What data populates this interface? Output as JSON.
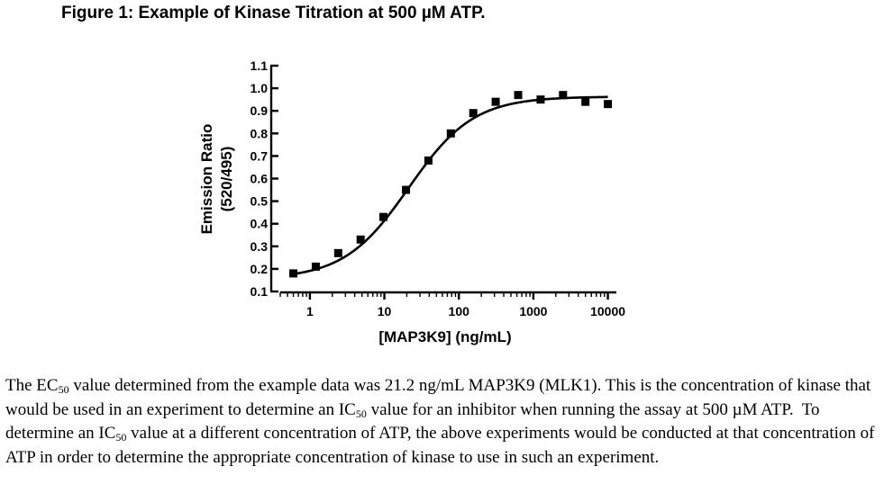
{
  "figure": {
    "title": "Figure 1: Example of Kinase Titration at 500 µM ATP."
  },
  "chart_data": {
    "type": "scatter",
    "xscale": "log",
    "xlim": [
      0.4,
      13000
    ],
    "ylim": [
      0.1,
      1.1
    ],
    "xlabel": "[MAP3K9] (ng/mL)",
    "ylabel": "Emission Ratio",
    "ylabel2": "(520/495)",
    "x_ticks": [
      {
        "value": 1,
        "label": "1"
      },
      {
        "value": 10,
        "label": "10"
      },
      {
        "value": 100,
        "label": "100"
      },
      {
        "value": 1000,
        "label": "1000"
      },
      {
        "value": 10000,
        "label": "10000"
      }
    ],
    "y_ticks": [
      {
        "value": 0.1,
        "label": "0.1"
      },
      {
        "value": 0.2,
        "label": "0.2"
      },
      {
        "value": 0.3,
        "label": "0.3"
      },
      {
        "value": 0.4,
        "label": "0.4"
      },
      {
        "value": 0.5,
        "label": "0.5"
      },
      {
        "value": 0.6,
        "label": "0.6"
      },
      {
        "value": 0.7,
        "label": "0.7"
      },
      {
        "value": 0.8,
        "label": "0.8"
      },
      {
        "value": 0.9,
        "label": "0.9"
      },
      {
        "value": 1.0,
        "label": "1.0"
      },
      {
        "value": 1.1,
        "label": "1.1"
      }
    ],
    "points": [
      {
        "x": 0.6,
        "y": 0.18
      },
      {
        "x": 1.2,
        "y": 0.21
      },
      {
        "x": 2.4,
        "y": 0.27
      },
      {
        "x": 4.8,
        "y": 0.33
      },
      {
        "x": 9.7,
        "y": 0.43
      },
      {
        "x": 19.5,
        "y": 0.55
      },
      {
        "x": 39,
        "y": 0.68
      },
      {
        "x": 78,
        "y": 0.8
      },
      {
        "x": 156,
        "y": 0.89
      },
      {
        "x": 312,
        "y": 0.94
      },
      {
        "x": 625,
        "y": 0.97
      },
      {
        "x": 1250,
        "y": 0.95
      },
      {
        "x": 2500,
        "y": 0.97
      },
      {
        "x": 5000,
        "y": 0.94
      },
      {
        "x": 10000,
        "y": 0.93
      }
    ],
    "fit": {
      "model": "sigmoidal-dose-response",
      "bottom": 0.155,
      "top": 0.963,
      "ec50": 21.2,
      "hill": 1.0
    }
  },
  "paragraph": {
    "p1": "The EC",
    "s1": "50",
    "p2": " value determined from the example data was 21.2 ng/mL MAP3K9 (MLK1). This is the concentration of kinase that would be used in an experiment to determine an IC",
    "s2": "50",
    "p3": " value for an inhibitor when running the assay at 500 µM ATP.  To determine an IC",
    "s3": "50",
    "p4": " value at a different concentration of ATP, the above experiments would be conducted at that concentration of ATP in order to determine the appropriate concentration of kinase to use in such an experiment."
  }
}
